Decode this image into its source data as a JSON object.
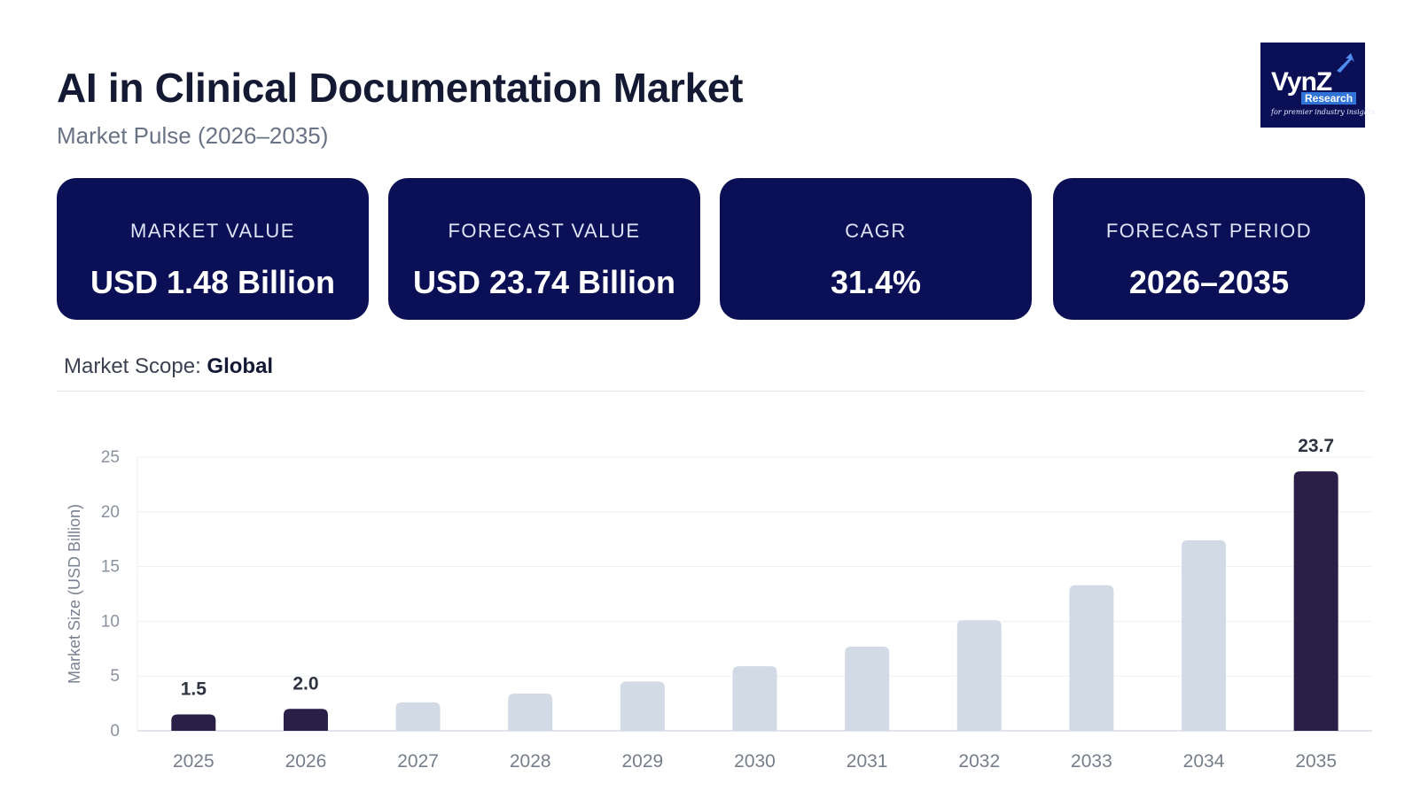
{
  "header": {
    "title": "AI in Clinical Documentation Market",
    "subtitle": "Market Pulse (2026–2035)"
  },
  "logo": {
    "name": "VynZ",
    "badge": "Research",
    "tagline": "for premier industry insights"
  },
  "cards": [
    {
      "label": "MARKET VALUE",
      "value": "USD 1.48 Billion"
    },
    {
      "label": "FORECAST VALUE",
      "value": "USD 23.74 Billion"
    },
    {
      "label": "CAGR",
      "value": "31.4%"
    },
    {
      "label": "FORECAST PERIOD",
      "value": "2026–2035"
    }
  ],
  "scope": {
    "label": "Market Scope:",
    "value": "Global"
  },
  "colors": {
    "card_bg": "#0b0f56",
    "bar_highlight": "#2a1f47",
    "bar_muted": "#d2dae6"
  },
  "chart_data": {
    "type": "bar",
    "categories": [
      "2025",
      "2026",
      "2027",
      "2028",
      "2029",
      "2030",
      "2031",
      "2032",
      "2033",
      "2034",
      "2035"
    ],
    "values": [
      1.5,
      2.0,
      2.6,
      3.4,
      4.5,
      5.9,
      7.7,
      10.1,
      13.3,
      17.4,
      23.7
    ],
    "highlighted": [
      true,
      true,
      false,
      false,
      false,
      false,
      false,
      false,
      false,
      false,
      true
    ],
    "data_labels": [
      "1.5",
      "2.0",
      "",
      "",
      "",
      "",
      "",
      "",
      "",
      "",
      "23.7"
    ],
    "ylabel": "Market Size (USD Billion)",
    "ylim": [
      0,
      25
    ],
    "yticks": [
      0,
      5,
      10,
      15,
      20,
      25
    ],
    "grid": true
  }
}
